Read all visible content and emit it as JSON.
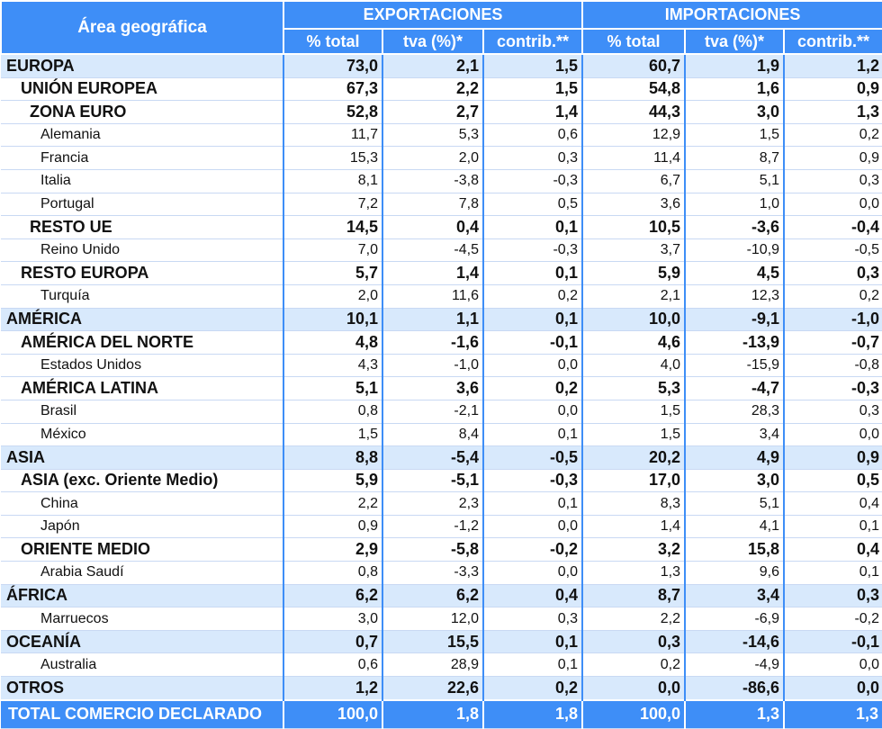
{
  "header": {
    "area_label": "Área geográfica",
    "exports_label": "EXPORTACIONES",
    "imports_label": "IMPORTACIONES",
    "sub": [
      "% total",
      "tva (%)*",
      "contrib.**",
      "% total",
      "tva (%)*",
      "contrib.**"
    ]
  },
  "rows": [
    {
      "name": "EUROPA",
      "level": 0,
      "bold": true,
      "region": true,
      "values": [
        "73,0",
        "2,1",
        "1,5",
        "60,7",
        "1,9",
        "1,2"
      ]
    },
    {
      "name": "UNIÓN EUROPEA",
      "level": 1,
      "bold": true,
      "region": false,
      "values": [
        "67,3",
        "2,2",
        "1,5",
        "54,8",
        "1,6",
        "0,9"
      ]
    },
    {
      "name": "ZONA EURO",
      "level": 2,
      "bold": true,
      "region": false,
      "values": [
        "52,8",
        "2,7",
        "1,4",
        "44,3",
        "3,0",
        "1,3"
      ]
    },
    {
      "name": "Alemania",
      "level": 3,
      "bold": false,
      "region": false,
      "values": [
        "11,7",
        "5,3",
        "0,6",
        "12,9",
        "1,5",
        "0,2"
      ]
    },
    {
      "name": "Francia",
      "level": 3,
      "bold": false,
      "region": false,
      "values": [
        "15,3",
        "2,0",
        "0,3",
        "11,4",
        "8,7",
        "0,9"
      ]
    },
    {
      "name": "Italia",
      "level": 3,
      "bold": false,
      "region": false,
      "values": [
        "8,1",
        "-3,8",
        "-0,3",
        "6,7",
        "5,1",
        "0,3"
      ]
    },
    {
      "name": "Portugal",
      "level": 3,
      "bold": false,
      "region": false,
      "values": [
        "7,2",
        "7,8",
        "0,5",
        "3,6",
        "1,0",
        "0,0"
      ]
    },
    {
      "name": "RESTO UE",
      "level": 2,
      "bold": true,
      "region": false,
      "values": [
        "14,5",
        "0,4",
        "0,1",
        "10,5",
        "-3,6",
        "-0,4"
      ]
    },
    {
      "name": "Reino Unido",
      "level": 3,
      "bold": false,
      "region": false,
      "values": [
        "7,0",
        "-4,5",
        "-0,3",
        "3,7",
        "-10,9",
        "-0,5"
      ]
    },
    {
      "name": "RESTO EUROPA",
      "level": 1,
      "bold": true,
      "region": false,
      "values": [
        "5,7",
        "1,4",
        "0,1",
        "5,9",
        "4,5",
        "0,3"
      ]
    },
    {
      "name": "Turquía",
      "level": 3,
      "bold": false,
      "region": false,
      "values": [
        "2,0",
        "11,6",
        "0,2",
        "2,1",
        "12,3",
        "0,2"
      ]
    },
    {
      "name": "AMÉRICA",
      "level": 0,
      "bold": true,
      "region": true,
      "values": [
        "10,1",
        "1,1",
        "0,1",
        "10,0",
        "-9,1",
        "-1,0"
      ]
    },
    {
      "name": "AMÉRICA DEL NORTE",
      "level": 1,
      "bold": true,
      "region": false,
      "values": [
        "4,8",
        "-1,6",
        "-0,1",
        "4,6",
        "-13,9",
        "-0,7"
      ]
    },
    {
      "name": "Estados Unidos",
      "level": 3,
      "bold": false,
      "region": false,
      "values": [
        "4,3",
        "-1,0",
        "0,0",
        "4,0",
        "-15,9",
        "-0,8"
      ]
    },
    {
      "name": "AMÉRICA LATINA",
      "level": 1,
      "bold": true,
      "region": false,
      "values": [
        "5,1",
        "3,6",
        "0,2",
        "5,3",
        "-4,7",
        "-0,3"
      ]
    },
    {
      "name": "Brasil",
      "level": 3,
      "bold": false,
      "region": false,
      "values": [
        "0,8",
        "-2,1",
        "0,0",
        "1,5",
        "28,3",
        "0,3"
      ]
    },
    {
      "name": "México",
      "level": 3,
      "bold": false,
      "region": false,
      "values": [
        "1,5",
        "8,4",
        "0,1",
        "1,5",
        "3,4",
        "0,0"
      ]
    },
    {
      "name": "ASIA",
      "level": 0,
      "bold": true,
      "region": true,
      "values": [
        "8,8",
        "-5,4",
        "-0,5",
        "20,2",
        "4,9",
        "0,9"
      ]
    },
    {
      "name": "ASIA (exc. Oriente Medio)",
      "level": 1,
      "bold": true,
      "region": false,
      "values": [
        "5,9",
        "-5,1",
        "-0,3",
        "17,0",
        "3,0",
        "0,5"
      ]
    },
    {
      "name": "China",
      "level": 3,
      "bold": false,
      "region": false,
      "values": [
        "2,2",
        "2,3",
        "0,1",
        "8,3",
        "5,1",
        "0,4"
      ]
    },
    {
      "name": "Japón",
      "level": 3,
      "bold": false,
      "region": false,
      "values": [
        "0,9",
        "-1,2",
        "0,0",
        "1,4",
        "4,1",
        "0,1"
      ]
    },
    {
      "name": "ORIENTE MEDIO",
      "level": 1,
      "bold": true,
      "region": false,
      "values": [
        "2,9",
        "-5,8",
        "-0,2",
        "3,2",
        "15,8",
        "0,4"
      ]
    },
    {
      "name": "Arabia Saudí",
      "level": 3,
      "bold": false,
      "region": false,
      "values": [
        "0,8",
        "-3,3",
        "0,0",
        "1,3",
        "9,6",
        "0,1"
      ]
    },
    {
      "name": "ÁFRICA",
      "level": 0,
      "bold": true,
      "region": true,
      "values": [
        "6,2",
        "6,2",
        "0,4",
        "8,7",
        "3,4",
        "0,3"
      ]
    },
    {
      "name": "Marruecos",
      "level": 3,
      "bold": false,
      "region": false,
      "values": [
        "3,0",
        "12,0",
        "0,3",
        "2,2",
        "-6,9",
        "-0,2"
      ]
    },
    {
      "name": "OCEANÍA",
      "level": 0,
      "bold": true,
      "region": true,
      "values": [
        "0,7",
        "15,5",
        "0,1",
        "0,3",
        "-14,6",
        "-0,1"
      ]
    },
    {
      "name": "Australia",
      "level": 3,
      "bold": false,
      "region": false,
      "values": [
        "0,6",
        "28,9",
        "0,1",
        "0,2",
        "-4,9",
        "0,0"
      ]
    },
    {
      "name": "OTROS",
      "level": 0,
      "bold": true,
      "region": true,
      "values": [
        "1,2",
        "22,6",
        "0,2",
        "0,0",
        "-86,6",
        "0,0"
      ]
    }
  ],
  "total": {
    "name": "TOTAL COMERCIO DECLARADO",
    "values": [
      "100,0",
      "1,8",
      "1,8",
      "100,0",
      "1,3",
      "1,3"
    ]
  }
}
